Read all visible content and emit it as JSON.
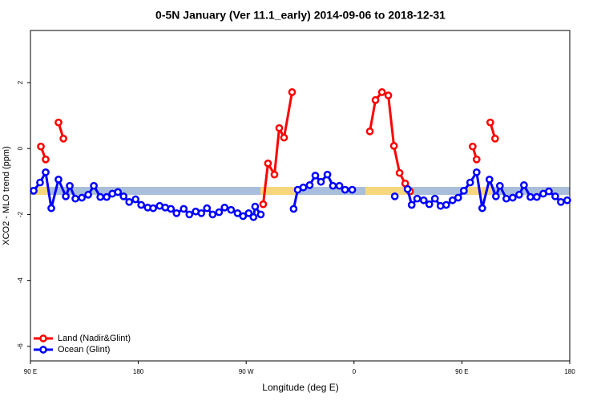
{
  "chart_data": {
    "type": "line",
    "title": "0-5N January (Ver 11.1_early)   2014-09-06 to 2018-12-31",
    "x_label": "Longitude (deg E)",
    "y_label": "XCO2 - MLO trend (ppm)",
    "xlim": [
      90,
      540
    ],
    "xticks": [
      {
        "value": 90,
        "label": "90 E"
      },
      {
        "value": 180,
        "label": "180"
      },
      {
        "value": 270,
        "label": "90 W"
      },
      {
        "value": 360,
        "label": "0"
      },
      {
        "value": 450,
        "label": "90 E"
      },
      {
        "value": 540,
        "label": "180"
      }
    ],
    "ylim": [
      -6.44,
      3.58
    ],
    "yticks": [
      -6,
      -4,
      -2,
      0,
      2
    ],
    "legend": "bottom-left",
    "series": [
      {
        "name": "Land (Nadir&Glint)",
        "color": "#ff0000",
        "x": [
          98.7,
          102.7,
          null,
          113.4,
          117.5,
          null,
          284.2,
          288.2,
          293.6,
          297.6,
          301.6,
          308.3,
          null,
          373.2,
          377.9,
          383.3,
          388.6,
          393.3,
          398.0,
          402.7,
          406.7,
          null,
          459.0,
          462.3,
          null,
          473.7,
          477.7
        ],
        "values": [
          0.06,
          -0.33,
          null,
          0.79,
          0.3,
          null,
          -1.69,
          -0.45,
          -0.79,
          0.62,
          0.33,
          1.71,
          null,
          0.52,
          1.47,
          1.71,
          1.61,
          0.08,
          -0.74,
          -1.06,
          -1.3,
          null,
          0.06,
          -0.33,
          null,
          0.79,
          0.3
        ]
      },
      {
        "name": "Ocean (Glint)",
        "color": "#0000ff",
        "x": [
          92.7,
          98.0,
          102.7,
          107.4,
          113.4,
          119.5,
          122.8,
          127.5,
          132.9,
          138.2,
          142.9,
          148.3,
          153.6,
          158.3,
          163.0,
          167.7,
          172.4,
          177.7,
          182.4,
          187.8,
          192.4,
          197.8,
          202.5,
          207.2,
          211.9,
          217.9,
          222.6,
          227.9,
          232.6,
          237.3,
          242.0,
          247.4,
          252.0,
          257.4,
          262.8,
          267.4,
          272.1,
          276.1,
          277.5,
          282.2,
          null,
          309.6,
          313.0,
          317.7,
          323.0,
          327.7,
          332.4,
          337.8,
          342.4,
          347.8,
          352.5,
          358.5,
          null,
          394.0,
          null,
          404.7,
          408.1,
          412.7,
          418.1,
          422.8,
          427.5,
          432.2,
          436.9,
          442.2,
          446.9,
          451.6,
          456.9,
          462.3,
          467.0,
          473.0,
          478.4,
          481.7,
          487.1,
          492.4,
          497.8,
          501.8,
          507.2,
          512.5,
          517.9,
          522.6,
          527.9,
          532.6,
          537.9
        ],
        "values": [
          -1.28,
          -1.03,
          -0.72,
          -1.81,
          -0.94,
          -1.45,
          -1.13,
          -1.52,
          -1.49,
          -1.4,
          -1.13,
          -1.47,
          -1.47,
          -1.37,
          -1.32,
          -1.45,
          -1.62,
          -1.54,
          -1.71,
          -1.79,
          -1.81,
          -1.74,
          -1.79,
          -1.83,
          -1.96,
          -1.83,
          -2.0,
          -1.91,
          -1.96,
          -1.81,
          -2.0,
          -1.93,
          -1.79,
          -1.86,
          -1.96,
          -2.05,
          -1.96,
          -2.08,
          -1.76,
          -2.0,
          null,
          -1.83,
          -1.25,
          -1.18,
          -1.11,
          -0.82,
          -1.01,
          -0.79,
          -1.13,
          -1.13,
          -1.25,
          -1.25,
          null,
          -1.45,
          null,
          -1.23,
          -1.71,
          -1.52,
          -1.57,
          -1.69,
          -1.52,
          -1.74,
          -1.71,
          -1.57,
          -1.49,
          -1.28,
          -1.03,
          -0.72,
          -1.81,
          -0.94,
          -1.45,
          -1.13,
          -1.52,
          -1.49,
          -1.4,
          -1.11,
          -1.47,
          -1.47,
          -1.37,
          -1.3,
          -1.45,
          -1.62,
          -1.57
        ]
      }
    ]
  }
}
